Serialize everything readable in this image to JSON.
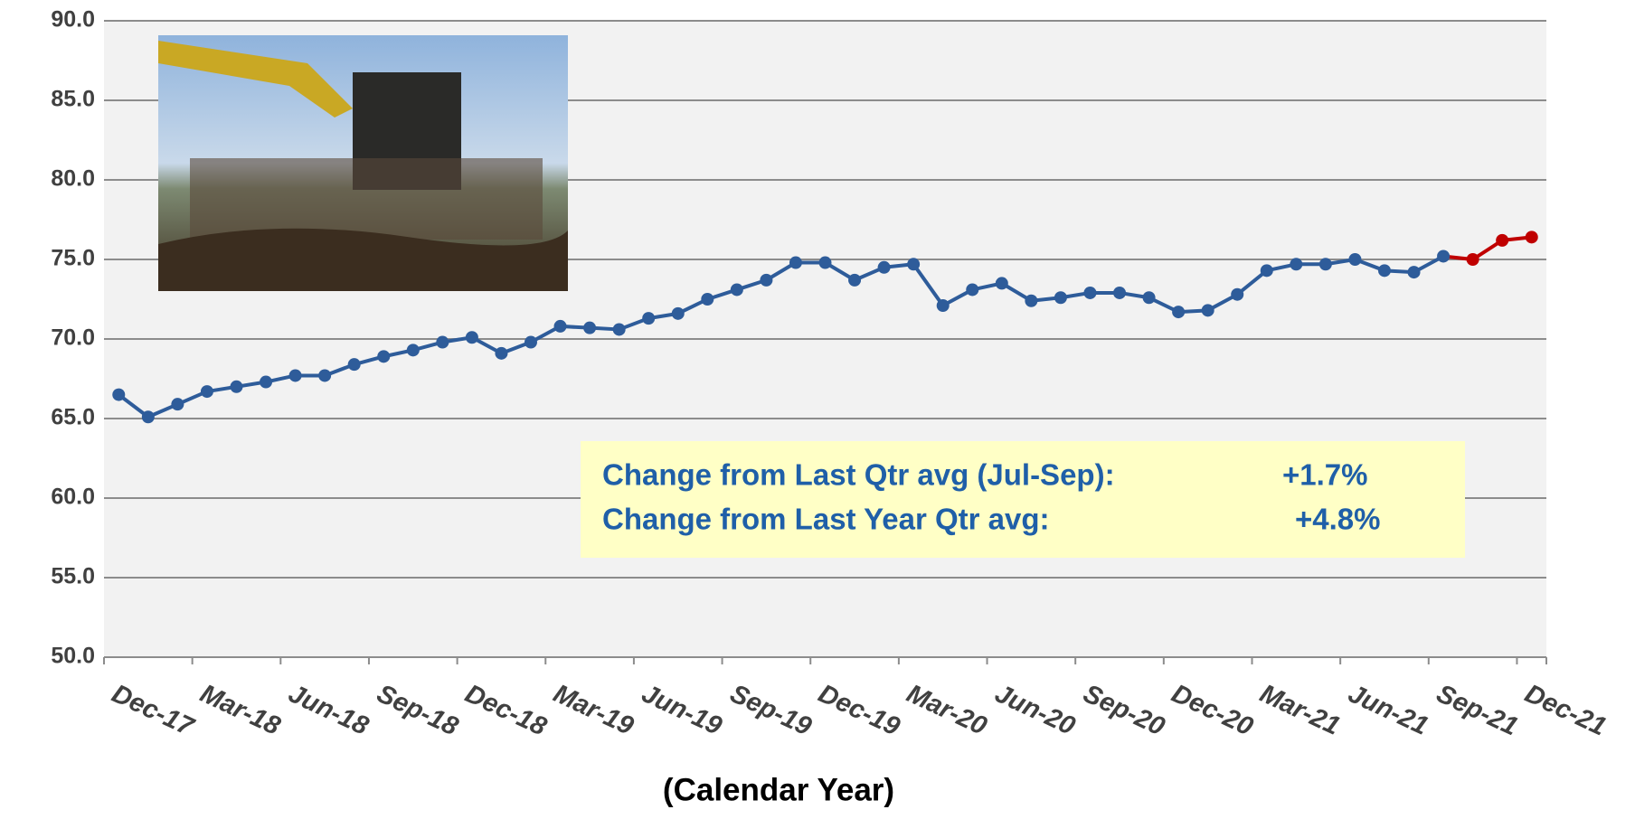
{
  "chart_data": {
    "type": "line",
    "x_label": "(Calendar Year)",
    "categories": [
      "Dec-17",
      null,
      null,
      "Mar-18",
      null,
      null,
      "Jun-18",
      null,
      null,
      "Sep-18",
      null,
      null,
      "Dec-18",
      null,
      null,
      "Mar-19",
      null,
      null,
      "Jun-19",
      null,
      null,
      "Sep-19",
      null,
      null,
      "Dec-19",
      null,
      null,
      "Mar-20",
      null,
      null,
      "Jun-20",
      null,
      null,
      "Sep-20",
      null,
      null,
      "Dec-20",
      null,
      null,
      "Mar-21",
      null,
      null,
      "Jun-21",
      null,
      null,
      "Sep-21",
      null,
      null,
      "Dec-21"
    ],
    "series": [
      {
        "color": "#2e5c9a",
        "highlight_color": "#c00000",
        "highlight_start": 46,
        "values": [
          66.5,
          65.1,
          65.9,
          66.7,
          67.0,
          67.3,
          67.7,
          67.7,
          68.4,
          68.9,
          69.3,
          69.8,
          70.1,
          69.1,
          69.8,
          70.8,
          70.7,
          70.6,
          71.3,
          71.6,
          72.5,
          73.1,
          73.7,
          74.8,
          74.8,
          73.7,
          74.5,
          74.7,
          72.1,
          73.1,
          73.5,
          72.4,
          72.6,
          72.9,
          72.9,
          72.6,
          71.7,
          71.8,
          72.8,
          74.3,
          74.7,
          74.7,
          75.0,
          74.3,
          74.2,
          75.2,
          75.0,
          76.2,
          76.4
        ]
      }
    ],
    "ylim": [
      50,
      90
    ],
    "yticks": [
      {
        "value": 50,
        "label": "50.0"
      },
      {
        "value": 55,
        "label": "55.0"
      },
      {
        "value": 60,
        "label": "60.0"
      },
      {
        "value": 65,
        "label": "65.0"
      },
      {
        "value": 70,
        "label": "70.0"
      },
      {
        "value": 75,
        "label": "75.0"
      },
      {
        "value": 80,
        "label": "80.0"
      },
      {
        "value": 85,
        "label": "85.0"
      },
      {
        "value": 90,
        "label": "90.0"
      }
    ],
    "grid": true,
    "annotation": {
      "lines": [
        [
          "Change from Last Qtr avg (Jul-Sep):",
          "+1.7%"
        ],
        [
          "Change from Last Year Qtr avg:",
          "+4.8%"
        ]
      ]
    }
  }
}
